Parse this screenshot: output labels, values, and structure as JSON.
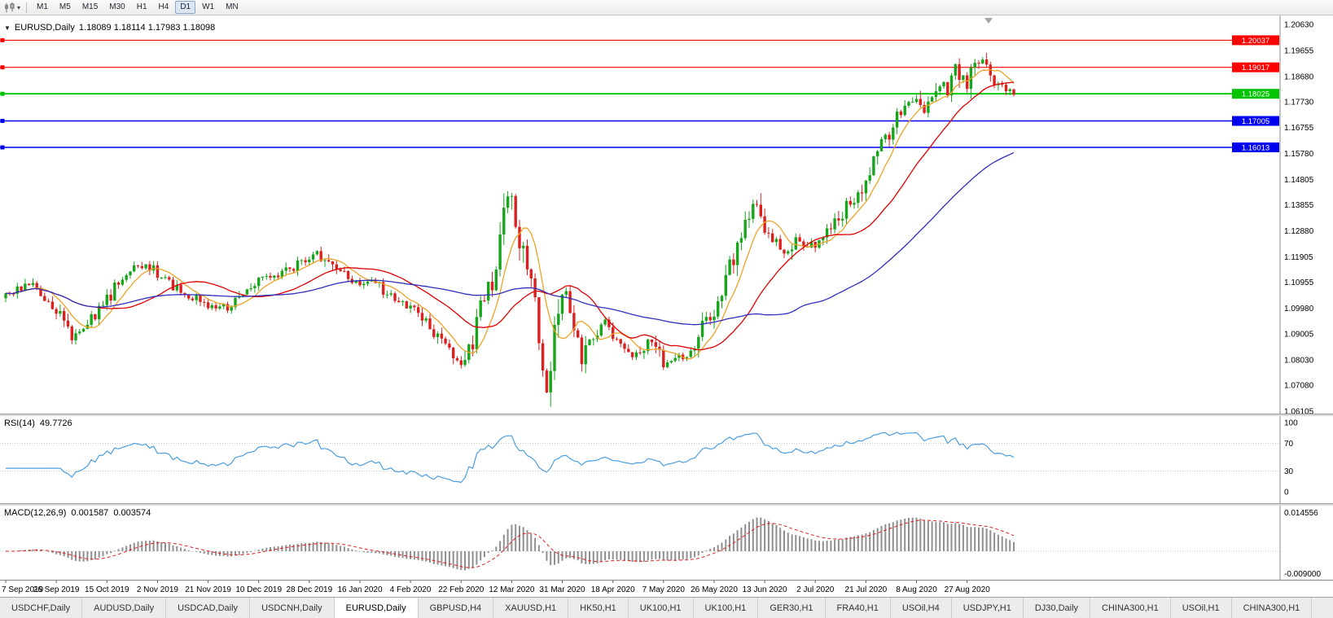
{
  "icons": {
    "dropdown_caret": "▾",
    "collapse": "▼"
  },
  "toolbar": {
    "timeframes": [
      "M1",
      "M5",
      "M15",
      "M30",
      "H1",
      "H4",
      "D1",
      "W1",
      "MN"
    ],
    "active": "D1"
  },
  "main_chart": {
    "title": "EURUSD,Daily",
    "ohlc": "1.18089 1.18114 1.17983 1.18098"
  },
  "chart_data": {
    "type": "candlestick",
    "symbol": "EURUSD",
    "period": "Daily",
    "current_bar": {
      "open": 1.18089,
      "high": 1.18114,
      "low": 1.17983,
      "close": 1.18098
    },
    "ylim": [
      1.06105,
      1.2063
    ],
    "price_axis_labels": [
      "1.20630",
      "1.19655",
      "1.18680",
      "1.17730",
      "1.16755",
      "1.15780",
      "1.14805",
      "1.13855",
      "1.12880",
      "1.11905",
      "1.10955",
      "1.09980",
      "1.09005",
      "1.08030",
      "1.07080",
      "1.06105"
    ],
    "date_labels": [
      "7 Sep 2019",
      "26 Sep 2019",
      "15 Oct 2019",
      "2 Nov 2019",
      "21 Nov 2019",
      "10 Dec 2019",
      "28 Dec 2019",
      "16 Jan 2020",
      "4 Feb 2020",
      "22 Feb 2020",
      "12 Mar 2020",
      "31 Mar 2020",
      "18 Apr 2020",
      "7 May 2020",
      "26 May 2020",
      "13 Jun 2020",
      "2 Jul 2020",
      "21 Jul 2020",
      "8 Aug 2020",
      "27 Aug 2020"
    ],
    "bars_per_label": 13,
    "bar_count": 260,
    "candle_up_color": "#17a51b",
    "candle_down_color": "#dc2020",
    "levels": [
      {
        "price": 1.20037,
        "label": "1.20037",
        "color": "#ff0000",
        "width": 1.1
      },
      {
        "price": 1.19017,
        "label": "1.19017",
        "color": "#ff0000",
        "width": 1.1
      },
      {
        "price": 1.18025,
        "label": "1.18025",
        "color": "#00c400",
        "width": 1.8
      },
      {
        "price": 1.17005,
        "label": "1.17005",
        "color": "#0000ee",
        "width": 1.4
      },
      {
        "price": 1.16013,
        "label": "1.16013",
        "color": "#0000ee",
        "width": 1.4
      }
    ],
    "moving_averages": [
      {
        "period": 8,
        "color": "#eda325"
      },
      {
        "period": 24,
        "color": "#e00000"
      },
      {
        "period": 65,
        "color": "#2f2fbe"
      }
    ],
    "anchors": [
      [
        0,
        1.104
      ],
      [
        6,
        1.1085
      ],
      [
        13,
        1.0995
      ],
      [
        17,
        1.089
      ],
      [
        22,
        1.096
      ],
      [
        26,
        1.103
      ],
      [
        31,
        1.114
      ],
      [
        36,
        1.116
      ],
      [
        39,
        1.113
      ],
      [
        45,
        1.106
      ],
      [
        52,
        1.101
      ],
      [
        57,
        1.1
      ],
      [
        62,
        1.107
      ],
      [
        65,
        1.111
      ],
      [
        70,
        1.112
      ],
      [
        75,
        1.1165
      ],
      [
        80,
        1.12
      ],
      [
        84,
        1.115
      ],
      [
        88,
        1.111
      ],
      [
        91,
        1.109
      ],
      [
        95,
        1.1095
      ],
      [
        100,
        1.1025
      ],
      [
        104,
        1.1
      ],
      [
        108,
        1.095
      ],
      [
        112,
        1.087
      ],
      [
        117,
        1.0795
      ],
      [
        120,
        1.088
      ],
      [
        123,
        1.103
      ],
      [
        126,
        1.113
      ],
      [
        129,
        1.143
      ],
      [
        131,
        1.133
      ],
      [
        133,
        1.118
      ],
      [
        135,
        1.108
      ],
      [
        137,
        1.092
      ],
      [
        139,
        1.07
      ],
      [
        141,
        1.088
      ],
      [
        143,
        1.106
      ],
      [
        145,
        1.102
      ],
      [
        148,
        1.081
      ],
      [
        151,
        1.09
      ],
      [
        154,
        1.095
      ],
      [
        156,
        1.088
      ],
      [
        159,
        1.086
      ],
      [
        162,
        1.082
      ],
      [
        165,
        1.087
      ],
      [
        167,
        1.084
      ],
      [
        169,
        1.079
      ],
      [
        172,
        1.082
      ],
      [
        175,
        1.081
      ],
      [
        178,
        1.09
      ],
      [
        180,
        1.095
      ],
      [
        182,
        1.098
      ],
      [
        185,
        1.111
      ],
      [
        188,
        1.123
      ],
      [
        191,
        1.133
      ],
      [
        193,
        1.1385
      ],
      [
        195,
        1.13
      ],
      [
        198,
        1.124
      ],
      [
        201,
        1.1205
      ],
      [
        203,
        1.126
      ],
      [
        205,
        1.122
      ],
      [
        208,
        1.124
      ],
      [
        211,
        1.128
      ],
      [
        214,
        1.133
      ],
      [
        217,
        1.14
      ],
      [
        220,
        1.1445
      ],
      [
        224,
        1.159
      ],
      [
        227,
        1.165
      ],
      [
        230,
        1.174
      ],
      [
        232,
        1.1765
      ],
      [
        234,
        1.178
      ],
      [
        236,
        1.173
      ],
      [
        238,
        1.179
      ],
      [
        240,
        1.184
      ],
      [
        242,
        1.181
      ],
      [
        244,
        1.193
      ],
      [
        246,
        1.1845
      ],
      [
        247,
        1.183
      ],
      [
        249,
        1.19
      ],
      [
        251,
        1.194
      ],
      [
        253,
        1.1855
      ],
      [
        255,
        1.183
      ],
      [
        257,
        1.1818
      ],
      [
        259,
        1.181
      ]
    ],
    "rsi": {
      "name": "RSI(14)",
      "value": "49.7726",
      "period": 14,
      "color": "#4a9ede",
      "scale_labels": [
        "100",
        "70",
        "30",
        "0"
      ],
      "guide_levels": [
        70,
        30
      ]
    },
    "macd": {
      "name": "MACD(12,26,9)",
      "value_main": "0.001587",
      "value_signal": "0.003574",
      "fast": 12,
      "slow": 26,
      "signal": 9,
      "hist_color": "#8f8f8f",
      "signal_color": "#e02020",
      "axis_max": "0.014556",
      "axis_min": "-0.009000"
    }
  },
  "bottom_tabs": {
    "active_index": 4,
    "items": [
      "USDCHF,Daily",
      "AUDUSD,Daily",
      "USDCAD,Daily",
      "USDCNH,Daily",
      "EURUSD,Daily",
      "GBPUSD,H4",
      "XAUUSD,H1",
      "HK50,H1",
      "UK100,H1",
      "UK100,H1",
      "GER30,H1",
      "FRA40,H1",
      "USOil,H4",
      "USDJPY,H1",
      "DJ30,Daily",
      "CHINA300,H1",
      "USOil,H1",
      "CHINA300,H1"
    ]
  }
}
